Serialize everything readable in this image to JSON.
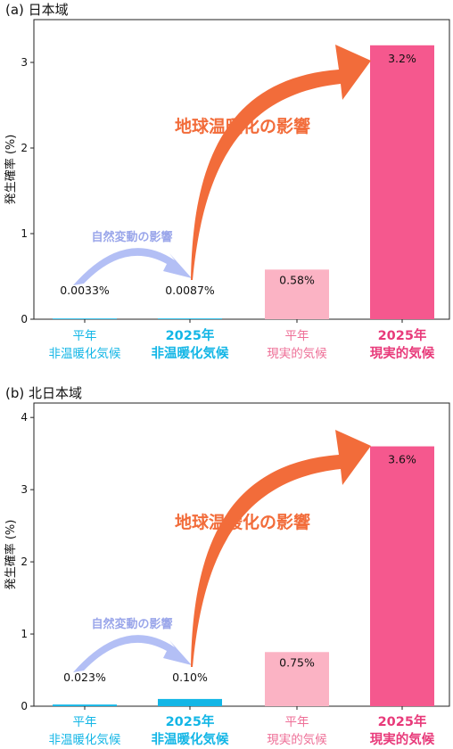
{
  "colors": {
    "cyan": "#13b6e6",
    "pink_light": "#fbb3c4",
    "pink": "#f5588e",
    "pink_text_light": "#ee6f97",
    "pink_text": "#e83a7a",
    "orange": "#f26c3a",
    "lavender": "#b3bff5",
    "lavender_text": "#9aa6ea"
  },
  "annotations": {
    "global_warming": "地球温暖化の影響",
    "natural_variability": "自然変動の影響"
  },
  "chart_data": [
    {
      "type": "bar",
      "title": "(a) 日本域",
      "ylabel": "発生確率 (%)",
      "ylim": [
        0,
        3.5
      ],
      "yticks": [
        0,
        1,
        2,
        3
      ],
      "categories": [
        {
          "line1": "平年",
          "line2": "非温暖化気候"
        },
        {
          "line1": "2025年",
          "line2": "非温暖化気候"
        },
        {
          "line1": "平年",
          "line2": "現実的気候"
        },
        {
          "line1": "2025年",
          "line2": "現実的気候"
        }
      ],
      "values": [
        0.0033,
        0.0087,
        0.58,
        3.2
      ],
      "data_labels": [
        "0.0033%",
        "0.0087%",
        "0.58%",
        "3.2%"
      ],
      "grid": false
    },
    {
      "type": "bar",
      "title": "(b) 北日本域",
      "ylabel": "発生確率 (%)",
      "ylim": [
        0,
        4.2
      ],
      "yticks": [
        0,
        1,
        2,
        3,
        4
      ],
      "categories": [
        {
          "line1": "平年",
          "line2": "非温暖化気候"
        },
        {
          "line1": "2025年",
          "line2": "非温暖化気候"
        },
        {
          "line1": "平年",
          "line2": "現実的気候"
        },
        {
          "line1": "2025年",
          "line2": "現実的気候"
        }
      ],
      "values": [
        0.023,
        0.1,
        0.75,
        3.6
      ],
      "data_labels": [
        "0.023%",
        "0.10%",
        "0.75%",
        "3.6%"
      ],
      "grid": false
    }
  ]
}
